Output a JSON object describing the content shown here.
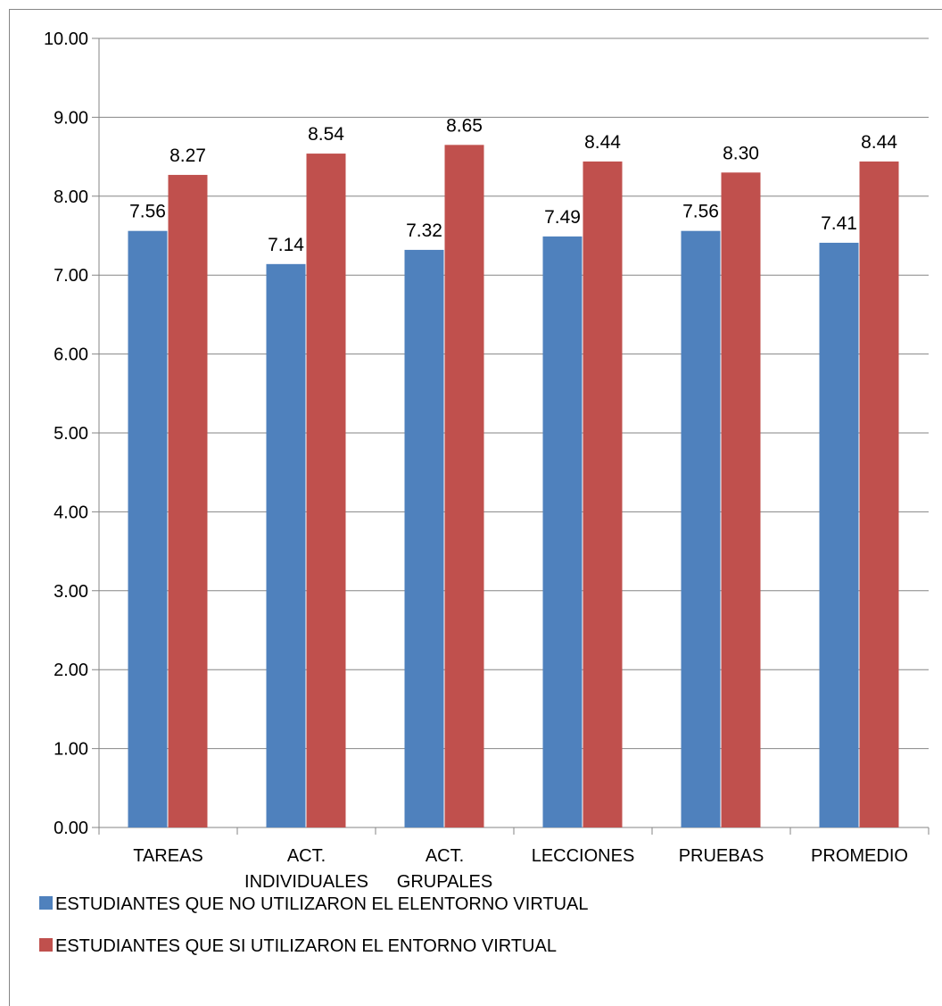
{
  "chart_data": {
    "type": "bar",
    "categories": [
      [
        "TAREAS"
      ],
      [
        "ACT.",
        "INDIVIDUALES"
      ],
      [
        "ACT.",
        "GRUPALES"
      ],
      [
        "LECCIONES"
      ],
      [
        "PRUEBAS"
      ],
      [
        "PROMEDIO"
      ]
    ],
    "series": [
      {
        "name": "ESTUDIANTES QUE NO UTILIZARON EL ELENTORNO VIRTUAL",
        "color": "#4F81BD",
        "values": [
          7.56,
          7.14,
          7.32,
          7.49,
          7.56,
          7.41
        ],
        "labels": [
          "7.56",
          "7.14",
          "7.32",
          "7.49",
          "7.56",
          "7.41"
        ]
      },
      {
        "name": "ESTUDIANTES QUE SI UTILIZARON EL ENTORNO VIRTUAL",
        "color": "#C0504D",
        "values": [
          8.27,
          8.54,
          8.65,
          8.44,
          8.3,
          8.44
        ],
        "labels": [
          "8.27",
          "8.54",
          "8.65",
          "8.44",
          "8.30",
          "8.44"
        ]
      }
    ],
    "yticks": [
      "0.00",
      "1.00",
      "2.00",
      "3.00",
      "4.00",
      "5.00",
      "6.00",
      "7.00",
      "8.00",
      "9.00",
      "10.00"
    ],
    "ylim": [
      0,
      10
    ],
    "grid": true,
    "legend_position": "bottom-left",
    "title": "",
    "xlabel": "",
    "ylabel": ""
  }
}
